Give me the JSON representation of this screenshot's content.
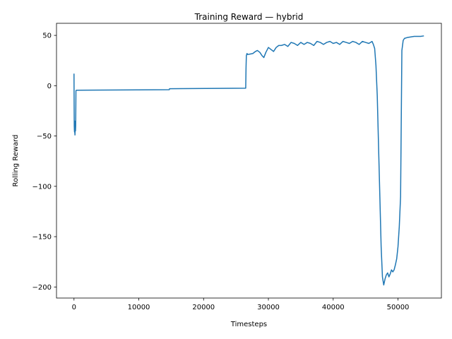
{
  "chart_data": {
    "type": "line",
    "title": "Training Reward — hybrid",
    "xlabel": "Timesteps",
    "ylabel": "Rolling Reward",
    "xlim": [
      -2700,
      56700
    ],
    "ylim": [
      -211,
      62
    ],
    "xticks": [
      0,
      10000,
      20000,
      30000,
      40000,
      50000
    ],
    "xtick_labels": [
      "0",
      "10000",
      "20000",
      "30000",
      "40000",
      "50000"
    ],
    "yticks": [
      50,
      0,
      -50,
      -100,
      -150,
      -200
    ],
    "ytick_labels": [
      "50",
      "0",
      "−50",
      "−100",
      "−150",
      "−200"
    ],
    "grid": false,
    "legend": "none",
    "series_color": "#1f77b4",
    "series": [
      {
        "x": [
          0,
          20,
          40,
          60,
          80,
          100,
          120,
          150,
          180,
          200,
          230,
          260,
          300,
          350,
          400,
          14700,
          14750,
          26500,
          26550,
          26600,
          26700,
          26800,
          27200,
          27600,
          28000,
          28300,
          28700,
          29000,
          29300,
          29600,
          30000,
          30400,
          30800,
          31200,
          31600,
          32000,
          32500,
          33000,
          33500,
          34000,
          34500,
          35000,
          35500,
          36000,
          36500,
          37000,
          37500,
          38000,
          38500,
          39000,
          39500,
          40000,
          40500,
          41000,
          41500,
          42000,
          42500,
          43000,
          43500,
          44000,
          44500,
          45000,
          45500,
          46000,
          46200,
          46400,
          46600,
          46800,
          47000,
          47200,
          47400,
          47600,
          47800,
          48000,
          48200,
          48400,
          48600,
          48800,
          49000,
          49200,
          49400,
          49600,
          49800,
          50000,
          50200,
          50400,
          50600,
          50700,
          50800,
          51000,
          51500,
          52000,
          52500,
          53000,
          53500,
          54000
        ],
        "y": [
          12,
          -20,
          -40,
          -44,
          -46,
          -35,
          -45,
          -49,
          -42,
          -38,
          -45,
          -40,
          -5,
          -4.5,
          -4.5,
          -4,
          -3,
          -2.5,
          18,
          30,
          32,
          31,
          31.5,
          32,
          34,
          35,
          33,
          30,
          28,
          33,
          38,
          36,
          34,
          38,
          40,
          40,
          41,
          39,
          43,
          42,
          40,
          43,
          41,
          43,
          42,
          40,
          44,
          43,
          41,
          43,
          44,
          42,
          43,
          41,
          44,
          43,
          42,
          44,
          43,
          41,
          44,
          43,
          42,
          44,
          41,
          37,
          20,
          -10,
          -60,
          -110,
          -160,
          -190,
          -198,
          -192,
          -188,
          -186,
          -190,
          -187,
          -183,
          -185,
          -183,
          -178,
          -172,
          -160,
          -140,
          -110,
          35,
          40,
          45,
          47,
          48,
          48.5,
          49,
          49,
          49,
          49.5
        ]
      }
    ]
  }
}
